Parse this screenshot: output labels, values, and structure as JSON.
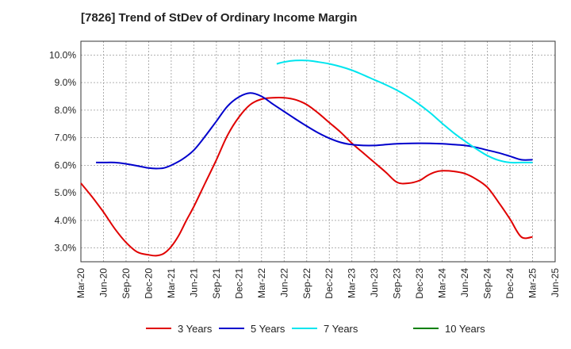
{
  "chart_data": {
    "type": "line",
    "title": "[7826]  Trend of StDev of Ordinary Income Margin",
    "xlabel": "",
    "ylabel": "",
    "x_categories": [
      "Mar-20",
      "Jun-20",
      "Sep-20",
      "Dec-20",
      "Mar-21",
      "Jun-21",
      "Sep-21",
      "Dec-21",
      "Mar-22",
      "Jun-22",
      "Sep-22",
      "Dec-22",
      "Mar-23",
      "Jun-23",
      "Sep-23",
      "Dec-23",
      "Mar-24",
      "Jun-24",
      "Sep-24",
      "Dec-24",
      "Mar-25",
      "Jun-25"
    ],
    "y_ticks": [
      "3.0%",
      "4.0%",
      "5.0%",
      "6.0%",
      "7.0%",
      "8.0%",
      "9.0%",
      "10.0%"
    ],
    "y_tick_values": [
      3,
      4,
      5,
      6,
      7,
      8,
      9,
      10
    ],
    "ylim": [
      2.5,
      10.5
    ],
    "grid": true,
    "legend_position": "bottom",
    "series": [
      {
        "name": "3 Years",
        "color": "#e00000",
        "x": [
          0,
          0.5,
          1,
          1.5,
          2,
          2.5,
          3,
          3.33,
          3.67,
          4,
          4.33,
          4.67,
          5,
          5.5,
          6,
          6.5,
          7,
          7.5,
          8,
          8.5,
          9,
          9.5,
          10,
          10.5,
          11,
          11.5,
          12,
          12.5,
          13,
          13.5,
          14,
          14.5,
          15,
          15.33,
          15.67,
          16,
          16.5,
          17,
          17.5,
          18,
          18.5,
          19,
          19.5,
          20
        ],
        "y": [
          5.35,
          4.85,
          4.3,
          3.7,
          3.2,
          2.85,
          2.75,
          2.72,
          2.8,
          3.05,
          3.45,
          4.0,
          4.5,
          5.35,
          6.2,
          7.1,
          7.75,
          8.2,
          8.4,
          8.45,
          8.45,
          8.38,
          8.2,
          7.9,
          7.55,
          7.2,
          6.8,
          6.45,
          6.1,
          5.75,
          5.38,
          5.35,
          5.45,
          5.62,
          5.75,
          5.8,
          5.78,
          5.7,
          5.5,
          5.2,
          4.65,
          4.05,
          3.4,
          3.4
        ]
      },
      {
        "name": "5 Years",
        "color": "#0000cc",
        "x": [
          0.67,
          1,
          1.5,
          2,
          2.5,
          3,
          3.33,
          3.67,
          4,
          4.5,
          5,
          5.5,
          6,
          6.5,
          7,
          7.5,
          8,
          8.5,
          9,
          9.5,
          10,
          10.5,
          11,
          11.5,
          12,
          12.5,
          13,
          13.5,
          14,
          15,
          16,
          16.5,
          17,
          17.5,
          18,
          18.5,
          19,
          19.5,
          20
        ],
        "y": [
          6.1,
          6.1,
          6.1,
          6.05,
          5.98,
          5.9,
          5.88,
          5.9,
          6.0,
          6.22,
          6.55,
          7.05,
          7.6,
          8.15,
          8.48,
          8.62,
          8.5,
          8.22,
          7.95,
          7.68,
          7.42,
          7.18,
          6.98,
          6.83,
          6.75,
          6.72,
          6.72,
          6.75,
          6.78,
          6.8,
          6.78,
          6.75,
          6.72,
          6.65,
          6.55,
          6.45,
          6.33,
          6.2,
          6.2
        ]
      },
      {
        "name": "7 Years",
        "color": "#00e5ee",
        "x": [
          8.67,
          9,
          9.5,
          10,
          10.5,
          11,
          11.5,
          12,
          12.5,
          13,
          13.5,
          14,
          14.5,
          15,
          15.5,
          16,
          16.5,
          17,
          17.5,
          18,
          18.5,
          19,
          19.5,
          20
        ],
        "y": [
          9.68,
          9.75,
          9.8,
          9.8,
          9.75,
          9.68,
          9.58,
          9.45,
          9.28,
          9.1,
          8.92,
          8.72,
          8.48,
          8.2,
          7.88,
          7.52,
          7.18,
          6.88,
          6.6,
          6.35,
          6.18,
          6.1,
          6.1,
          6.1
        ]
      },
      {
        "name": "10 Years",
        "color": "#008000",
        "x": [],
        "y": []
      }
    ]
  }
}
